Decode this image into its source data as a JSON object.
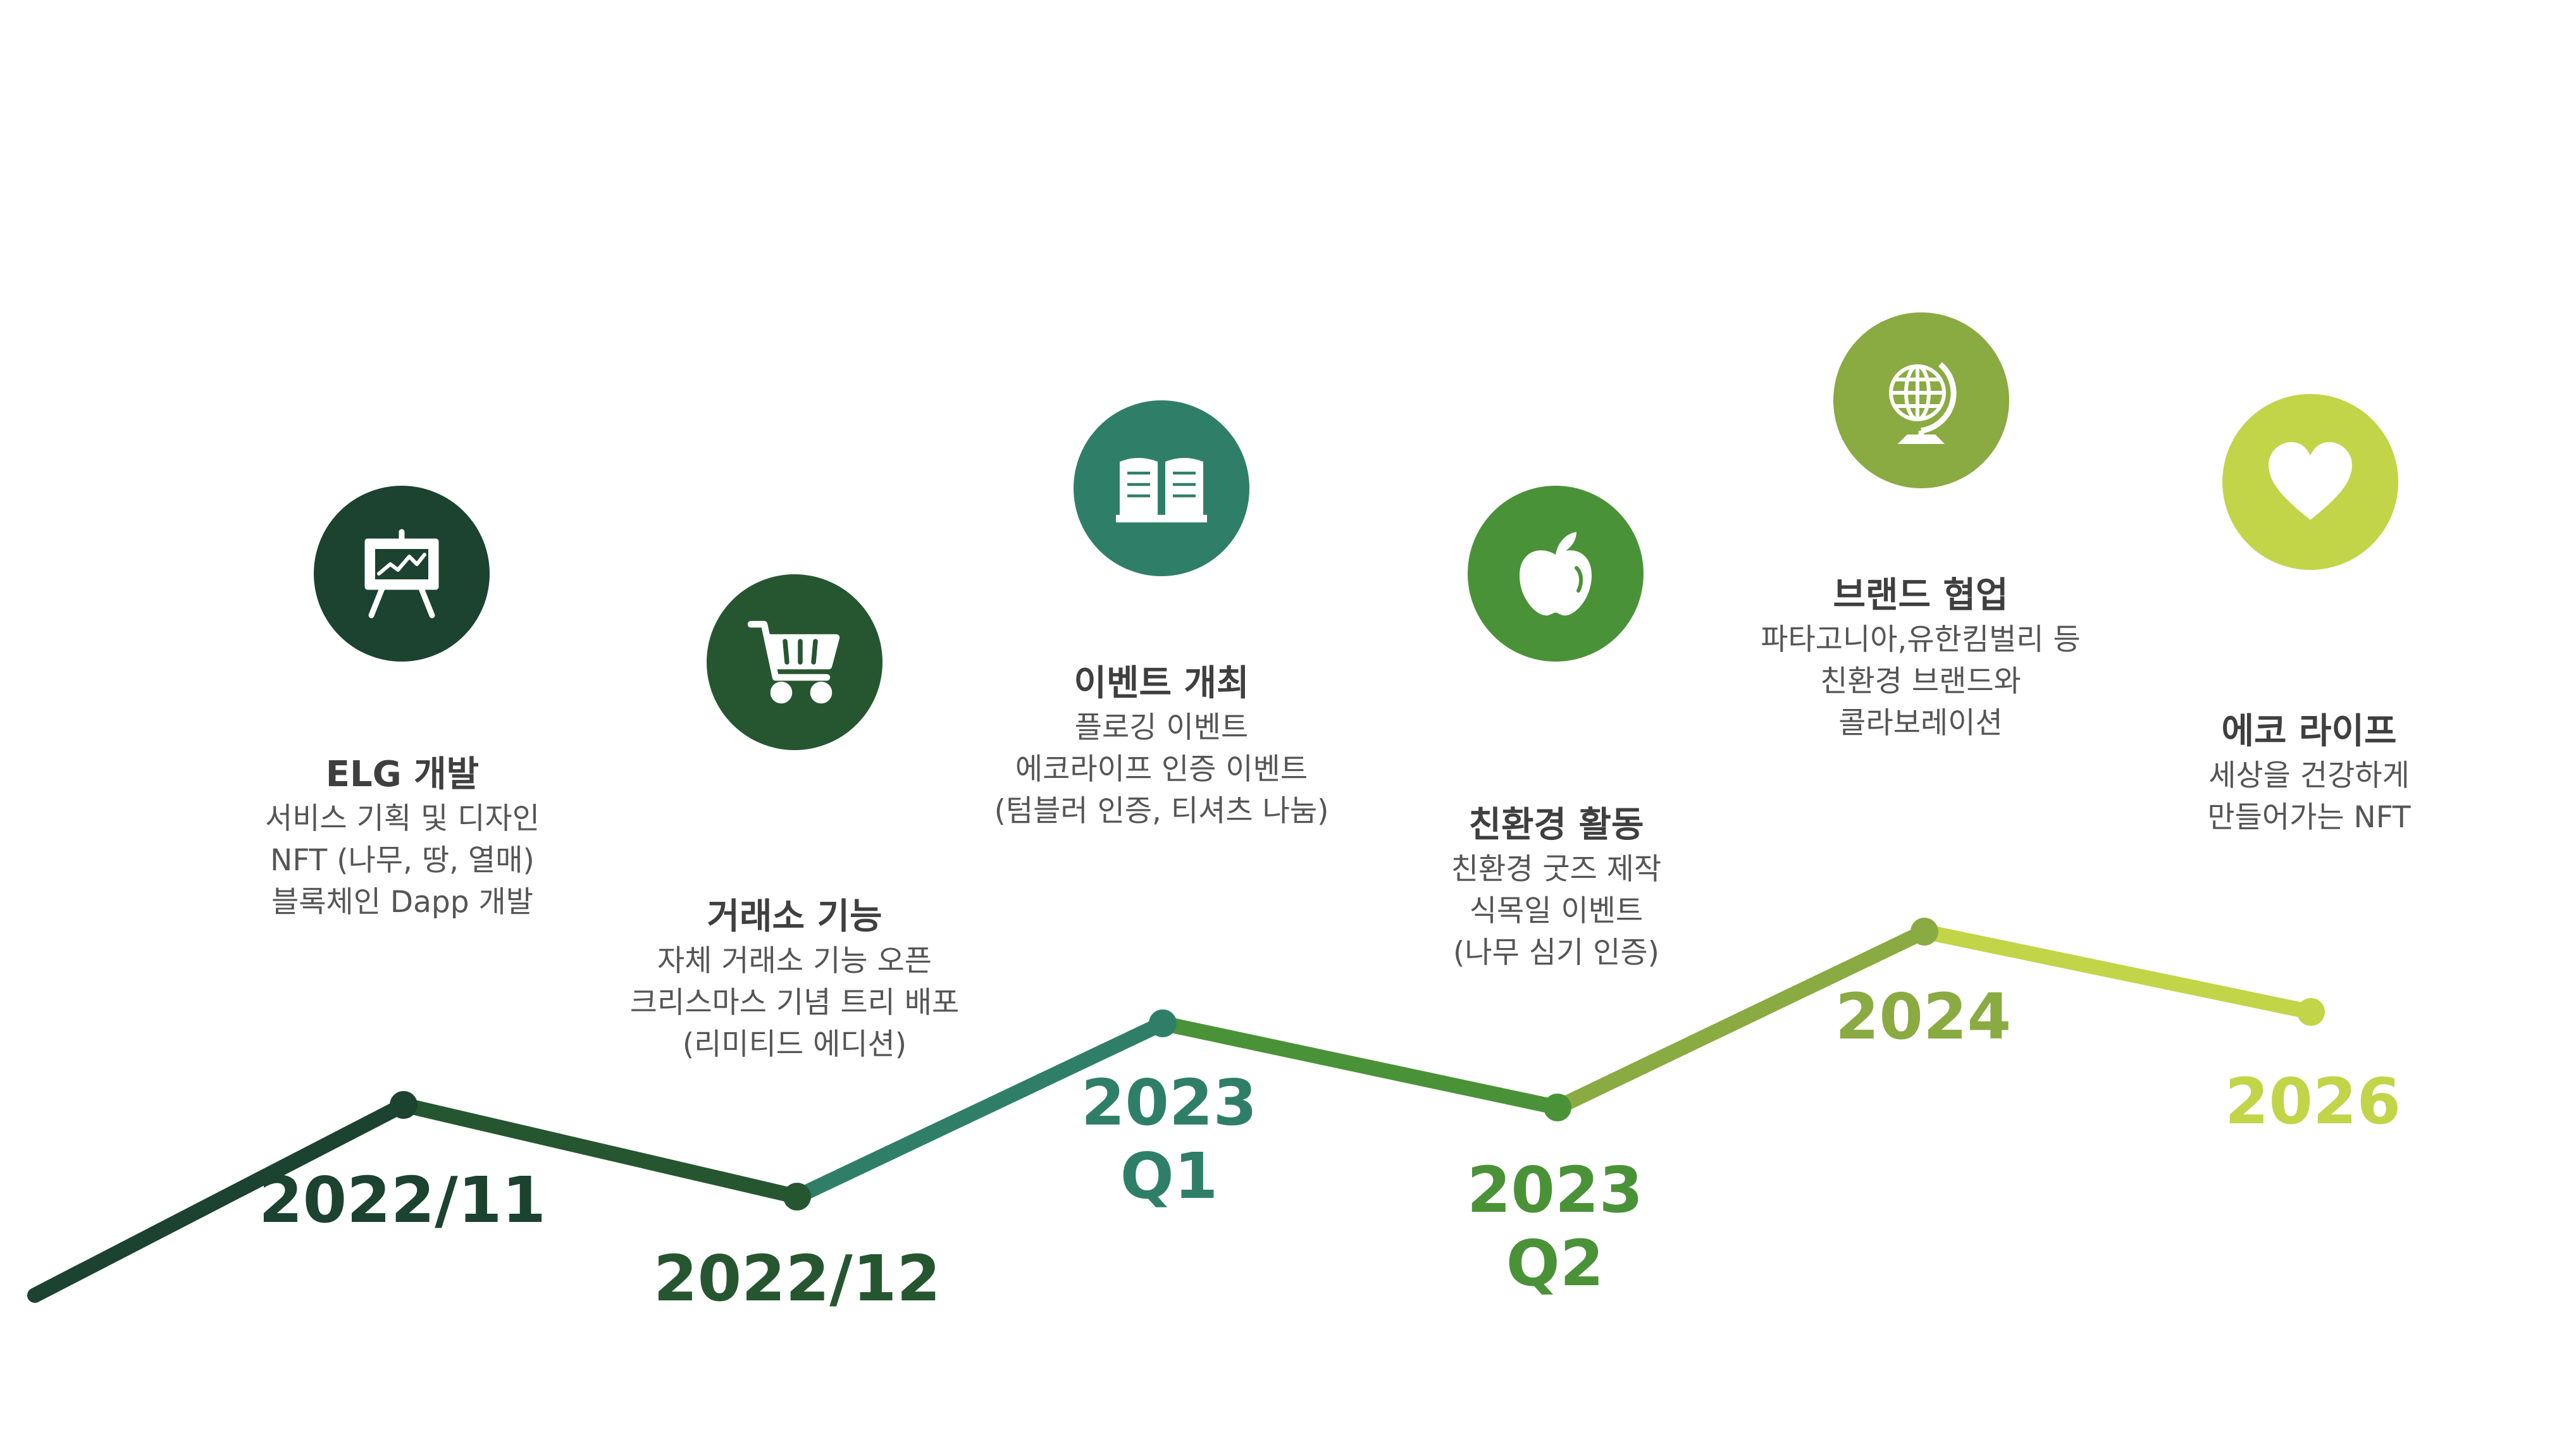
{
  "milestones": [
    {
      "date": "2022/11",
      "title": "ELG 개발",
      "lines": [
        "서비스 기획 및 디자인",
        "NFT (나무, 땅, 열매)",
        "블록체인 Dapp 개발"
      ],
      "icon": "presentation-board-icon",
      "color": "#1c4230"
    },
    {
      "date": "2022/12",
      "title": "거래소 기능",
      "lines": [
        "자체 거래소 기능 오픈",
        "크리스마스 기념 트리 배포",
        "(리미티드 에디션)"
      ],
      "icon": "shopping-cart-icon",
      "color": "#26562f"
    },
    {
      "date_line1": "2023",
      "date_line2": "Q1",
      "title": "이벤트 개최",
      "lines": [
        "플로깅 이벤트",
        "에코라이프 인증 이벤트",
        "(텀블러 인증, 티셔츠 나눔)"
      ],
      "icon": "open-book-icon",
      "color": "#2f7f68"
    },
    {
      "date_line1": "2023",
      "date_line2": "Q2",
      "title": "친환경 활동",
      "lines": [
        "친환경 굿즈 제작",
        "식목일 이벤트",
        "(나무 심기 인증)"
      ],
      "icon": "apple-icon",
      "color": "#4a9237"
    },
    {
      "date": "2024",
      "title": "브랜드 협업",
      "lines": [
        "파타고니아,유한킴벌리 등",
        "친환경 브랜드와",
        "콜라보레이션"
      ],
      "icon": "globe-icon",
      "color": "#8aaa42"
    },
    {
      "date": "2026",
      "title": "에코 라이프",
      "lines": [
        "세상을 건강하게",
        "만들어가는 NFT"
      ],
      "icon": "heart-icon",
      "color": "#c2d448"
    }
  ],
  "palette": {
    "start": "#1c4230",
    "teal": "#2f7f68",
    "green": "#4a9237",
    "olive": "#8aaa42",
    "lime": "#c2d448"
  }
}
